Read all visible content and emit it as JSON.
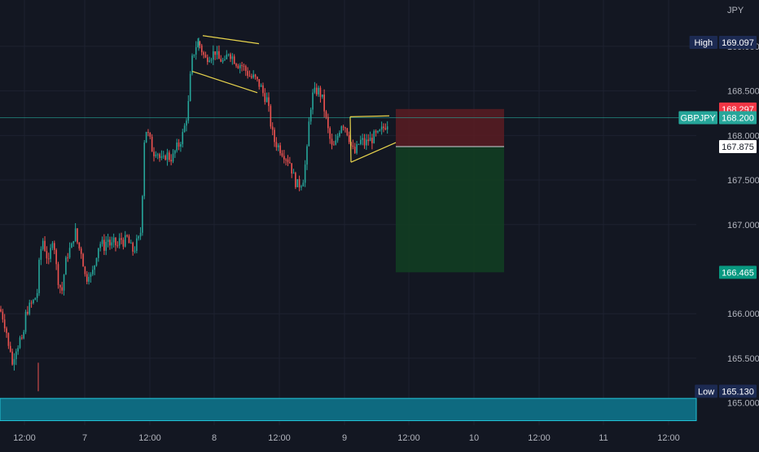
{
  "chart_data": {
    "type": "candlestick",
    "symbol": "GBPJPY",
    "currency": "JPY",
    "ylim": [
      164.75,
      169.52
    ],
    "y_ticks": [
      "169.000",
      "168.500",
      "168.000",
      "167.500",
      "167.000",
      "166.000",
      "165.500",
      "165.000"
    ],
    "x_ticks": [
      "12:00",
      "7",
      "12:00",
      "8",
      "12:00",
      "9",
      "12:00",
      "10",
      "12:00",
      "11",
      "12:00"
    ],
    "price_labels": {
      "high": {
        "label": "High",
        "value": "169.097"
      },
      "stop": {
        "value": "168.297"
      },
      "last": {
        "label": "GBPJPY",
        "value": "168.200"
      },
      "entry": {
        "value": "167.875"
      },
      "target": {
        "value": "166.465"
      },
      "low": {
        "label": "Low",
        "value": "165.130"
      }
    },
    "anchors": [
      [
        0,
        166.05
      ],
      [
        4,
        165.95
      ],
      [
        8,
        165.8
      ],
      [
        10,
        165.6
      ],
      [
        12,
        165.7
      ],
      [
        14,
        165.45
      ],
      [
        16,
        165.4
      ],
      [
        18,
        165.6
      ],
      [
        22,
        165.65
      ],
      [
        26,
        165.75
      ],
      [
        28,
        165.55
      ],
      [
        30,
        165.95
      ],
      [
        34,
        166.05
      ],
      [
        38,
        166.1
      ],
      [
        42,
        166.15
      ],
      [
        46,
        166.25
      ],
      [
        48,
        166.55
      ],
      [
        52,
        166.85
      ],
      [
        56,
        166.7
      ],
      [
        60,
        166.55
      ],
      [
        64,
        166.85
      ],
      [
        66,
        166.85
      ],
      [
        68,
        166.6
      ],
      [
        72,
        166.35
      ],
      [
        76,
        166.25
      ],
      [
        80,
        166.55
      ],
      [
        84,
        166.7
      ],
      [
        88,
        166.75
      ],
      [
        92,
        166.95
      ],
      [
        96,
        166.75
      ],
      [
        100,
        166.7
      ],
      [
        104,
        166.45
      ],
      [
        106,
        166.35
      ],
      [
        108,
        166.5
      ],
      [
        112,
        166.4
      ],
      [
        116,
        166.55
      ],
      [
        120,
        166.75
      ],
      [
        124,
        166.8
      ],
      [
        128,
        166.75
      ],
      [
        132,
        166.85
      ],
      [
        136,
        166.75
      ],
      [
        140,
        166.8
      ],
      [
        144,
        166.75
      ],
      [
        148,
        166.85
      ],
      [
        152,
        166.8
      ],
      [
        156,
        166.85
      ],
      [
        160,
        166.75
      ],
      [
        164,
        166.7
      ],
      [
        168,
        166.8
      ],
      [
        172,
        166.85
      ],
      [
        174,
        167.1
      ],
      [
        176,
        167.7
      ],
      [
        178,
        168.1
      ],
      [
        180,
        168.05
      ],
      [
        184,
        167.95
      ],
      [
        188,
        167.8
      ],
      [
        192,
        167.85
      ],
      [
        196,
        167.75
      ],
      [
        200,
        167.7
      ],
      [
        204,
        167.8
      ],
      [
        208,
        167.75
      ],
      [
        212,
        167.75
      ],
      [
        216,
        167.85
      ],
      [
        220,
        167.9
      ],
      [
        224,
        168.0
      ],
      [
        228,
        168.15
      ],
      [
        232,
        168.4
      ],
      [
        234,
        168.7
      ],
      [
        236,
        168.85
      ],
      [
        240,
        169.0
      ],
      [
        244,
        169.05
      ],
      [
        248,
        168.95
      ],
      [
        252,
        168.85
      ],
      [
        256,
        168.9
      ],
      [
        260,
        168.9
      ],
      [
        264,
        168.95
      ],
      [
        268,
        168.85
      ],
      [
        272,
        168.85
      ],
      [
        276,
        168.8
      ],
      [
        280,
        168.95
      ],
      [
        284,
        168.9
      ],
      [
        288,
        168.85
      ],
      [
        292,
        168.8
      ],
      [
        296,
        168.8
      ],
      [
        300,
        168.75
      ],
      [
        304,
        168.7
      ],
      [
        308,
        168.65
      ],
      [
        312,
        168.65
      ],
      [
        316,
        168.6
      ],
      [
        320,
        168.55
      ],
      [
        324,
        168.45
      ],
      [
        328,
        168.4
      ],
      [
        332,
        168.15
      ],
      [
        336,
        167.95
      ],
      [
        340,
        167.9
      ],
      [
        344,
        167.85
      ],
      [
        348,
        167.8
      ],
      [
        352,
        167.75
      ],
      [
        356,
        167.7
      ],
      [
        360,
        167.55
      ],
      [
        364,
        167.45
      ],
      [
        368,
        167.45
      ],
      [
        372,
        167.5
      ],
      [
        376,
        167.75
      ],
      [
        378,
        167.9
      ],
      [
        380,
        168.25
      ],
      [
        384,
        168.45
      ],
      [
        388,
        168.5
      ],
      [
        392,
        168.5
      ],
      [
        396,
        168.4
      ],
      [
        400,
        168.2
      ],
      [
        404,
        168.0
      ],
      [
        408,
        167.85
      ],
      [
        412,
        167.9
      ],
      [
        416,
        168.05
      ],
      [
        420,
        168.15
      ],
      [
        424,
        168.1
      ],
      [
        428,
        168.0
      ],
      [
        432,
        167.85
      ],
      [
        436,
        167.8
      ],
      [
        440,
        167.9
      ],
      [
        444,
        167.95
      ],
      [
        448,
        167.9
      ],
      [
        452,
        167.95
      ],
      [
        456,
        167.95
      ],
      [
        460,
        168.0
      ],
      [
        464,
        168.0
      ],
      [
        468,
        168.05
      ],
      [
        472,
        168.1
      ],
      [
        476,
        168.15
      ],
      [
        478,
        168.2
      ]
    ]
  }
}
